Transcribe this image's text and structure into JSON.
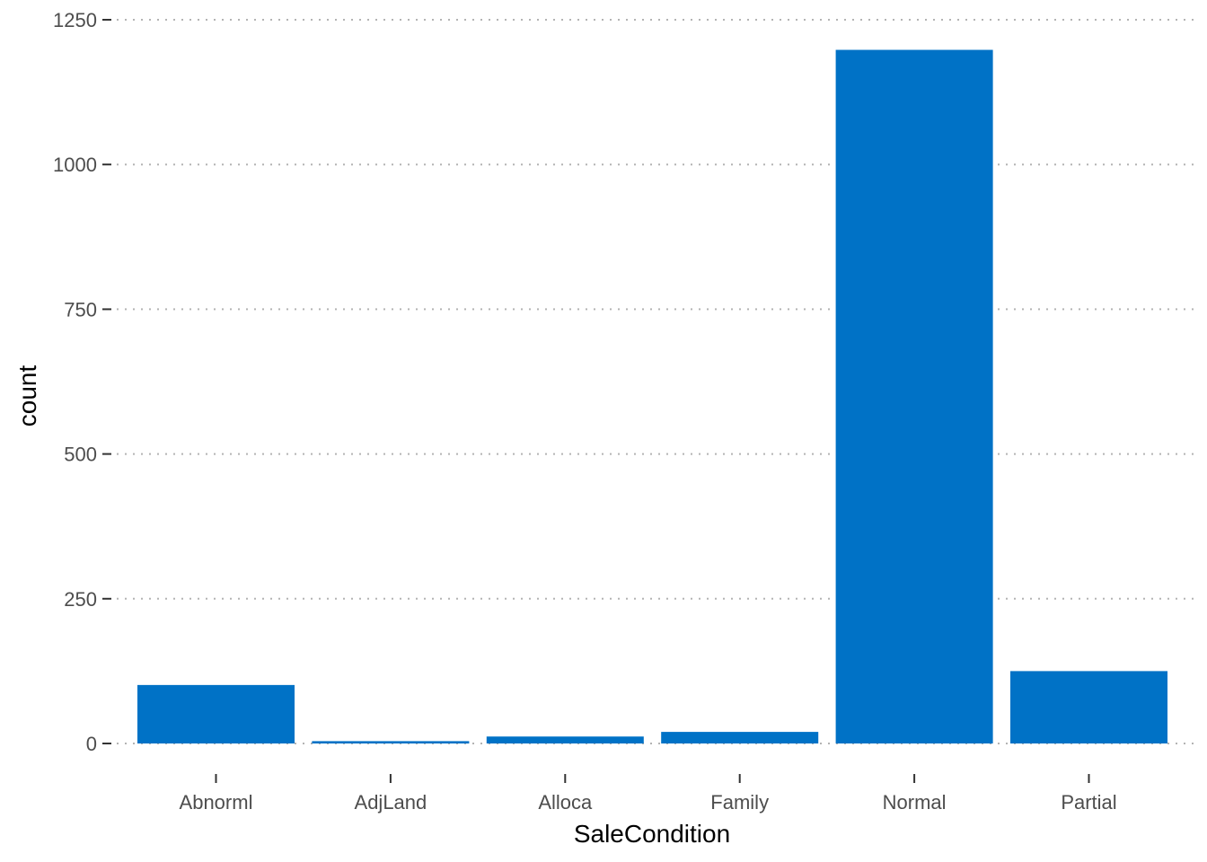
{
  "chart_data": {
    "type": "bar",
    "categories": [
      "Abnorml",
      "AdjLand",
      "Alloca",
      "Family",
      "Normal",
      "Partial"
    ],
    "values": [
      101,
      4,
      12,
      20,
      1198,
      125
    ],
    "xlabel": "SaleCondition",
    "ylabel": "count",
    "ylim": [
      0,
      1250
    ],
    "yticks": [
      0,
      250,
      500,
      750,
      1000,
      1250
    ],
    "grid": "horizontal dotted",
    "legend": "none",
    "bar_color": "#0072C6"
  }
}
